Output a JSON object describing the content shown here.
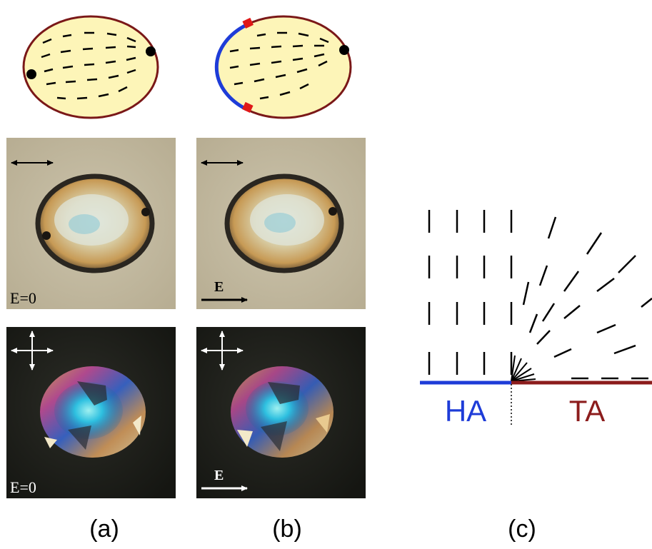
{
  "panels": [
    {
      "id": "a",
      "caption": "(a)",
      "bright_field_field_label": "E=0",
      "crossed_polarizers_field_label": "E=0"
    },
    {
      "id": "b",
      "caption": "(b)",
      "bright_field_field_label": "E",
      "crossed_polarizers_field_label": "E"
    },
    {
      "id": "c",
      "caption": "(c)",
      "left_label": "HA",
      "right_label": "TA"
    }
  ],
  "colors": {
    "droplet_fill": "#fdf5b8",
    "droplet_border": "#7a1818",
    "homeotropic_anchoring": "#1e3cd8",
    "tangential_anchoring": "#8c1c1c",
    "surface_defect": "#e01818",
    "bright_field_background": "#c8bfa6",
    "crossed_polarizer_background": "#1e1f1b"
  }
}
